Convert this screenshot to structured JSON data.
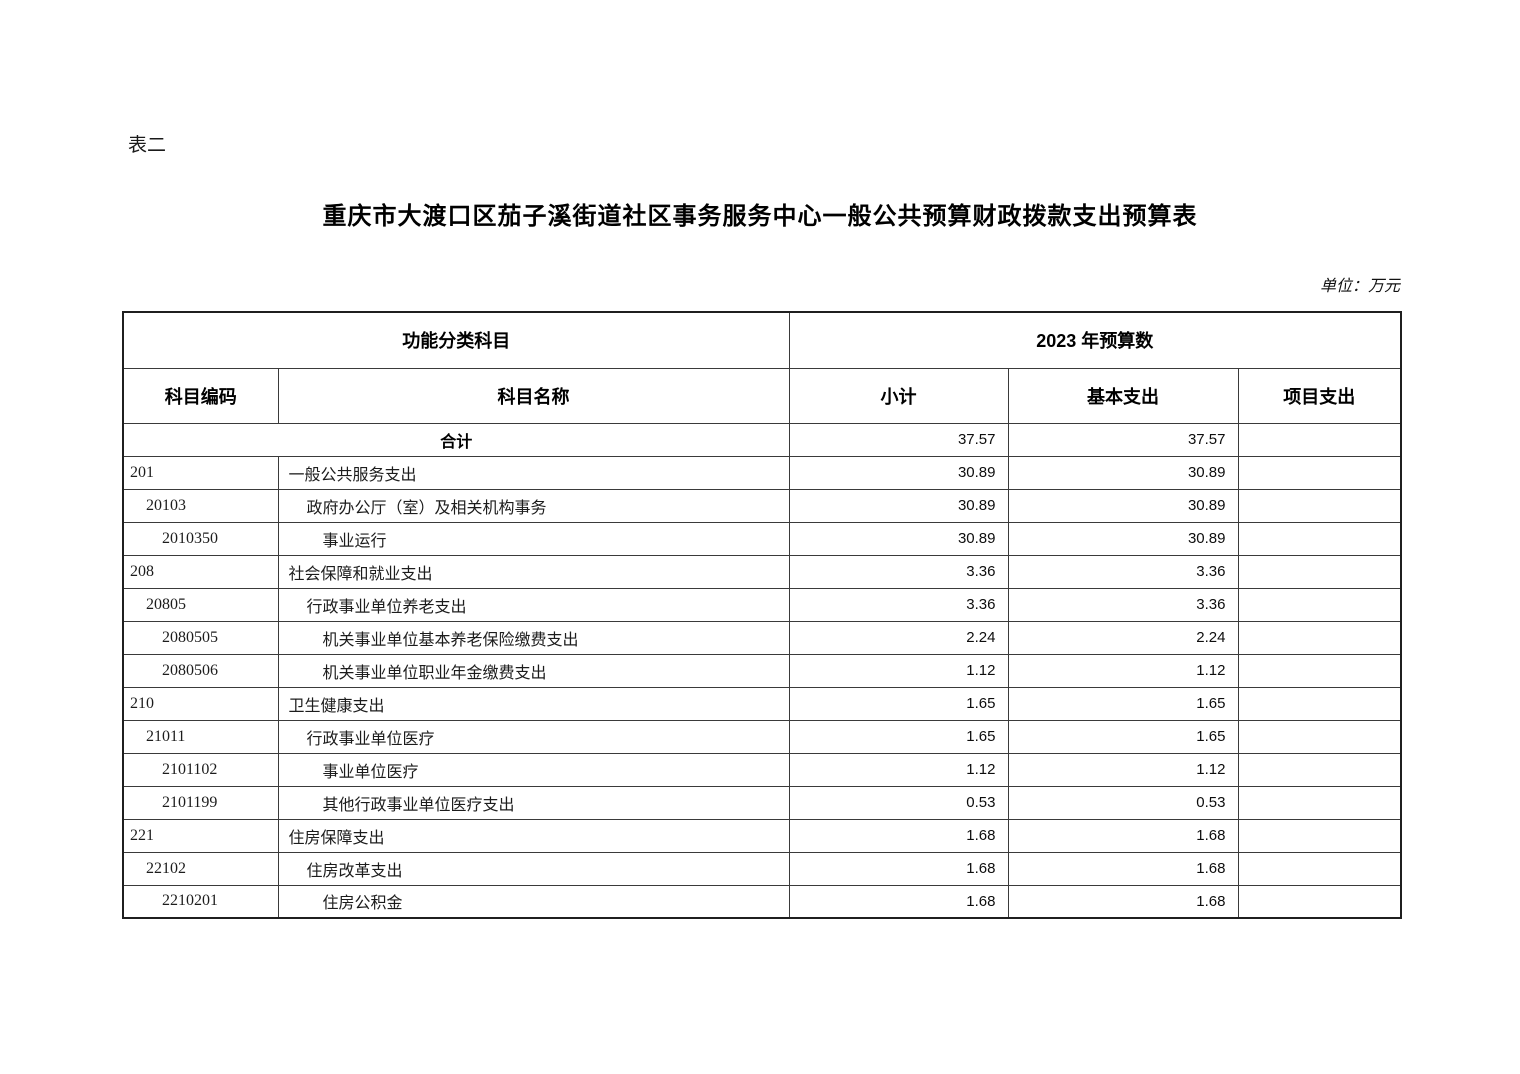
{
  "page": {
    "table_label": "表二",
    "title": "重庆市大渡口区茄子溪街道社区事务服务中心一般公共预算财政拨款支出预算表",
    "unit_note": "单位：万元"
  },
  "table": {
    "header": {
      "group_left": "功能分类科目",
      "group_right": "2023 年预算数",
      "col_code": "科目编码",
      "col_name": "科目名称",
      "col_subtotal": "小计",
      "col_basic": "基本支出",
      "col_project": "项目支出"
    },
    "total_row": {
      "name": "合计",
      "subtotal": "37.57",
      "basic": "37.57",
      "project": ""
    },
    "rows": [
      {
        "code": "201",
        "name": "一般公共服务支出",
        "level": 0,
        "subtotal": "30.89",
        "basic": "30.89",
        "project": ""
      },
      {
        "code": "20103",
        "name": "政府办公厅（室）及相关机构事务",
        "level": 1,
        "subtotal": "30.89",
        "basic": "30.89",
        "project": ""
      },
      {
        "code": "2010350",
        "name": "事业运行",
        "level": 2,
        "subtotal": "30.89",
        "basic": "30.89",
        "project": ""
      },
      {
        "code": "208",
        "name": "社会保障和就业支出",
        "level": 0,
        "subtotal": "3.36",
        "basic": "3.36",
        "project": ""
      },
      {
        "code": "20805",
        "name": "行政事业单位养老支出",
        "level": 1,
        "subtotal": "3.36",
        "basic": "3.36",
        "project": ""
      },
      {
        "code": "2080505",
        "name": "机关事业单位基本养老保险缴费支出",
        "level": 2,
        "subtotal": "2.24",
        "basic": "2.24",
        "project": ""
      },
      {
        "code": "2080506",
        "name": "机关事业单位职业年金缴费支出",
        "level": 2,
        "subtotal": "1.12",
        "basic": "1.12",
        "project": ""
      },
      {
        "code": "210",
        "name": "卫生健康支出",
        "level": 0,
        "subtotal": "1.65",
        "basic": "1.65",
        "project": ""
      },
      {
        "code": "21011",
        "name": "行政事业单位医疗",
        "level": 1,
        "subtotal": "1.65",
        "basic": "1.65",
        "project": ""
      },
      {
        "code": "2101102",
        "name": "事业单位医疗",
        "level": 2,
        "subtotal": "1.12",
        "basic": "1.12",
        "project": ""
      },
      {
        "code": "2101199",
        "name": "其他行政事业单位医疗支出",
        "level": 2,
        "subtotal": "0.53",
        "basic": "0.53",
        "project": ""
      },
      {
        "code": "221",
        "name": "住房保障支出",
        "level": 0,
        "subtotal": "1.68",
        "basic": "1.68",
        "project": ""
      },
      {
        "code": "22102",
        "name": "住房改革支出",
        "level": 1,
        "subtotal": "1.68",
        "basic": "1.68",
        "project": ""
      },
      {
        "code": "2210201",
        "name": "住房公积金",
        "level": 2,
        "subtotal": "1.68",
        "basic": "1.68",
        "project": ""
      }
    ]
  }
}
